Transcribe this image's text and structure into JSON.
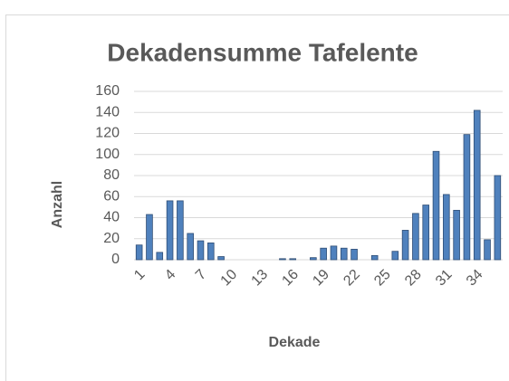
{
  "chart_data": {
    "type": "bar",
    "title": "Dekadensumme  Tafelente",
    "x_label": "Dekade",
    "y_label": "Anzahl",
    "categories": [
      "1",
      null,
      null,
      "4",
      null,
      null,
      "7",
      null,
      null,
      "10",
      null,
      null,
      "13",
      null,
      null,
      "16",
      null,
      null,
      "19",
      null,
      null,
      "22",
      null,
      null,
      "25",
      null,
      null,
      "28",
      null,
      null,
      "31",
      null,
      null,
      "34",
      null,
      null
    ],
    "values": [
      14,
      43,
      7,
      56,
      56,
      25,
      18,
      16,
      3,
      0,
      0,
      0,
      0,
      0,
      1,
      1,
      0,
      2,
      11,
      13,
      11,
      10,
      0,
      4,
      0,
      8,
      28,
      44,
      52,
      103,
      62,
      47,
      119,
      142,
      19,
      80
    ],
    "color": "#4f81bd",
    "ylim": [
      0,
      160
    ],
    "yticks": [
      0,
      20,
      40,
      60,
      80,
      100,
      120,
      140,
      160
    ],
    "grid": true
  }
}
